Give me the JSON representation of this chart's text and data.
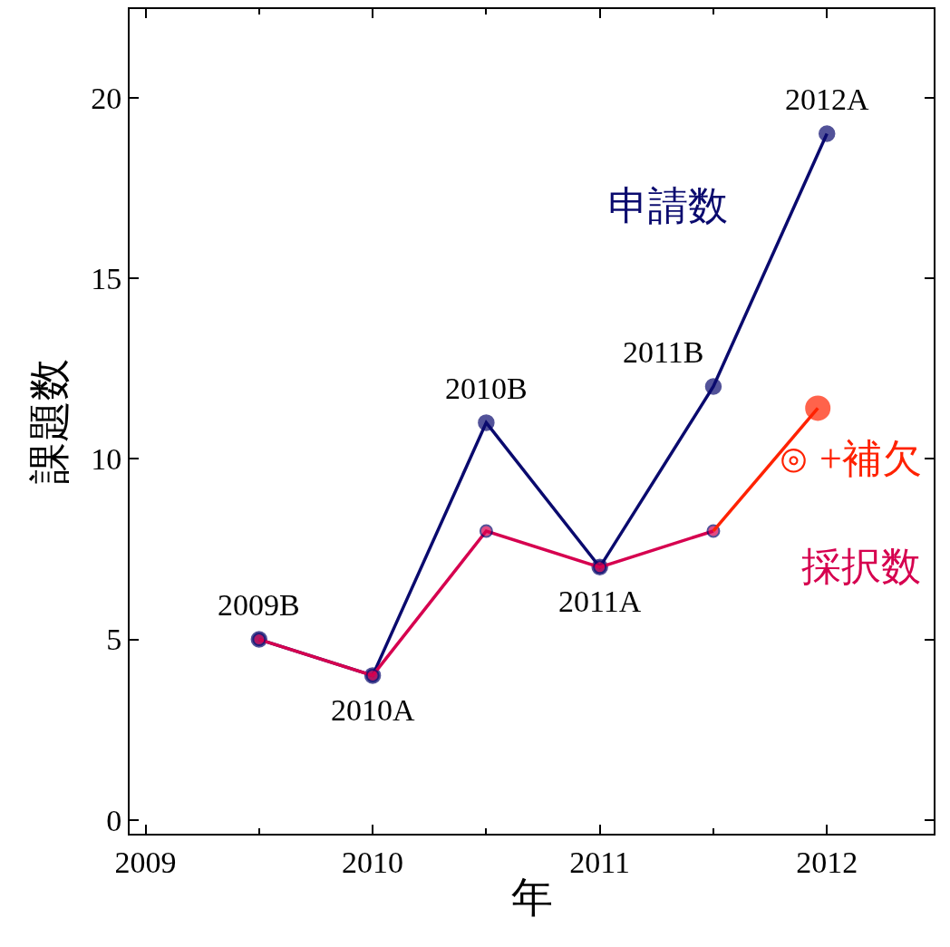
{
  "chart_data": {
    "type": "line",
    "xlabel": "年",
    "ylabel": "課題数",
    "xlim": [
      2008.93,
      2012.47
    ],
    "xticks": [
      2009,
      2010,
      2011,
      2012
    ],
    "ylim": [
      -0.38,
      22.45
    ],
    "yticks": [
      0,
      5,
      10,
      15,
      20
    ],
    "legend": false,
    "marker": "circle",
    "line_style": "solid",
    "series": [
      {
        "name": "申請数",
        "color": "#0a0a6e",
        "x": [
          2009.5,
          2010,
          2010.5,
          2011,
          2011.5,
          2012
        ],
        "values": [
          5,
          4,
          11,
          7,
          12,
          19
        ]
      },
      {
        "name": "採択数",
        "color": "#d6004f",
        "x": [
          2009.5,
          2010,
          2010.5,
          2011,
          2011.5
        ],
        "values": [
          5,
          4,
          8,
          7,
          8
        ]
      },
      {
        "name": "⊙ +補欠",
        "color": "#ff2200",
        "x": [
          2011.5,
          2011.96
        ],
        "values": [
          8,
          11.4
        ]
      }
    ],
    "annotations": [
      {
        "text": "2009B",
        "x": 2009.5,
        "y": 5
      },
      {
        "text": "2010A",
        "x": 2010,
        "y": 4
      },
      {
        "text": "2010B",
        "x": 2010.5,
        "y": 11
      },
      {
        "text": "2011A",
        "x": 2011,
        "y": 7
      },
      {
        "text": "2011B",
        "x": 2011.5,
        "y": 12
      },
      {
        "text": "2012A",
        "x": 2012,
        "y": 19
      }
    ]
  }
}
